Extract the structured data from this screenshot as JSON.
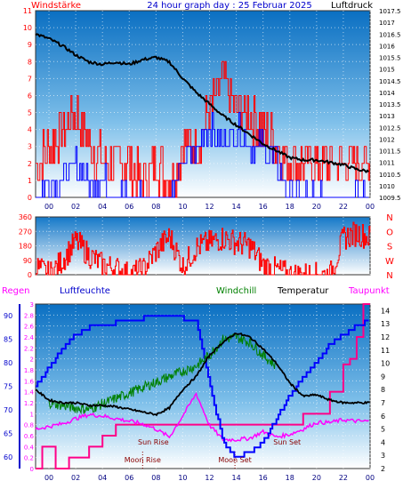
{
  "chart_data": [
    {
      "type": "line",
      "panel": "wind_pressure",
      "title": "24 hour graph day : 25 Februar 2025",
      "left_label": "Windstärke",
      "right_label": "Luftdruck",
      "x_ticks": [
        "00",
        "02",
        "04",
        "06",
        "08",
        "10",
        "12",
        "14",
        "16",
        "18",
        "20",
        "22",
        "00"
      ],
      "y_left_ticks": [
        "0",
        "1",
        "2",
        "3",
        "4",
        "5",
        "6",
        "7",
        "8",
        "9",
        "10",
        "11"
      ],
      "y_left_range": [
        0,
        11
      ],
      "y_right_ticks": [
        "1009.5",
        "1010",
        "1010.5",
        "1011",
        "1011.5",
        "1012",
        "1012.5",
        "1013",
        "1013.5",
        "1014",
        "1014.5",
        "1015",
        "1015.5",
        "1016",
        "1016.5",
        "1017",
        "1017.5"
      ],
      "y_right_range": [
        1009.5,
        1017.5
      ],
      "series": [
        {
          "name": "Luftdruck",
          "color": "#000000",
          "x": [
            -1,
            0,
            1,
            2,
            3,
            4,
            5,
            6,
            7,
            8,
            9,
            10,
            11,
            12,
            13,
            14,
            15,
            16,
            17,
            18,
            19,
            20,
            21,
            22,
            23,
            24
          ],
          "y": [
            1016.5,
            1016.3,
            1016.0,
            1015.6,
            1015.3,
            1015.2,
            1015.3,
            1015.2,
            1015.4,
            1015.5,
            1015.3,
            1014.6,
            1014.0,
            1013.5,
            1013.0,
            1012.6,
            1012.2,
            1011.8,
            1011.5,
            1011.2,
            1011.1,
            1011.1,
            1011.0,
            1010.9,
            1010.7,
            1010.6
          ]
        },
        {
          "name": "wind_gust",
          "color": "#ff0000",
          "x": [
            -1,
            0,
            1,
            2,
            3,
            4,
            5,
            6,
            7,
            8,
            9,
            10,
            11,
            12,
            13,
            14,
            15,
            16,
            17,
            18,
            19,
            20,
            21,
            22,
            23,
            24
          ],
          "y": [
            2,
            3,
            4,
            5,
            3,
            2,
            2,
            2,
            1,
            2,
            1,
            3,
            3,
            5,
            7,
            5,
            5,
            4,
            3,
            2,
            2,
            2,
            2,
            2,
            2,
            2
          ]
        },
        {
          "name": "wind_avg",
          "color": "#0000ff",
          "x": [
            -1,
            0,
            1,
            2,
            3,
            4,
            5,
            6,
            7,
            8,
            9,
            10,
            11,
            12,
            13,
            14,
            15,
            16,
            17,
            18,
            19,
            20,
            21,
            22,
            23,
            24
          ],
          "y": [
            0,
            1,
            1,
            2,
            1,
            1,
            0,
            0,
            0,
            0,
            0,
            2,
            3,
            4,
            3,
            4,
            3,
            3,
            2,
            0,
            0,
            0,
            0,
            0,
            0,
            0
          ]
        }
      ]
    },
    {
      "type": "line",
      "panel": "wind_direction",
      "y_left_ticks": [
        "0",
        "90",
        "180",
        "270",
        "360"
      ],
      "y_left_range": [
        0,
        360
      ],
      "y_right_ticks": [
        "N",
        "W",
        "S",
        "O",
        "N"
      ],
      "series": [
        {
          "name": "direction",
          "color": "#ff0000",
          "x": [
            -1,
            0,
            1,
            2,
            3,
            4,
            5,
            6,
            7,
            8,
            9,
            10,
            11,
            12,
            13,
            14,
            15,
            16,
            17,
            18,
            19,
            20,
            21,
            22,
            23,
            24
          ],
          "y": [
            50,
            0,
            90,
            210,
            120,
            60,
            40,
            0,
            30,
            150,
            240,
            50,
            170,
            200,
            230,
            200,
            180,
            60,
            30,
            0,
            0,
            0,
            0,
            230,
            260,
            230
          ]
        }
      ]
    },
    {
      "type": "line",
      "panel": "humidity_temperature",
      "labels": {
        "regen": "Regen",
        "luftfeuchte": "Luftfeuchte",
        "windchill": "Windchill",
        "temperatur": "Temperatur",
        "taupunkt": "Taupunkt"
      },
      "annotations": [
        "Sun Rise",
        "Sun Set",
        "Moon Rise",
        "Moon Set"
      ],
      "y_rain_ticks": [
        "0",
        "0.2",
        "0.4",
        "0.6",
        "0.8",
        "1",
        "1.2",
        "1.4",
        "1.6",
        "1.8",
        "2",
        "2.2",
        "2.4",
        "2.6",
        "2.8",
        "3"
      ],
      "y_rain_range": [
        0,
        3
      ],
      "y_humidity_ticks": [
        "60",
        "65",
        "70",
        "75",
        "80",
        "85",
        "90"
      ],
      "y_humidity_range": [
        57.5,
        92.5
      ],
      "y_temp_ticks": [
        "2",
        "3",
        "4",
        "5",
        "6",
        "7",
        "8",
        "9",
        "10",
        "11",
        "12",
        "13",
        "14"
      ],
      "y_temp_range": [
        2,
        14.5
      ],
      "x_ticks": [
        "00",
        "02",
        "04",
        "06",
        "08",
        "10",
        "12",
        "14",
        "16",
        "18",
        "20",
        "22",
        "00"
      ],
      "series": [
        {
          "name": "Luftfeuchte",
          "color": "#0000ff",
          "x": [
            -1,
            0,
            1,
            2,
            3,
            4,
            5,
            6,
            7,
            8,
            9,
            10,
            11,
            12,
            13,
            14,
            15,
            16,
            17,
            18,
            19,
            20,
            21,
            22,
            23,
            24
          ],
          "y": [
            75,
            79,
            83,
            86,
            87.5,
            88,
            88.5,
            89,
            89.5,
            89.5,
            89.5,
            89.5,
            89,
            76,
            63,
            60,
            61,
            63,
            68,
            73,
            77,
            80,
            84,
            86,
            88,
            89
          ]
        },
        {
          "name": "Temperatur",
          "color": "#000000",
          "x": [
            -1,
            0,
            1,
            2,
            3,
            4,
            5,
            6,
            7,
            8,
            9,
            10,
            11,
            12,
            13,
            14,
            15,
            16,
            17,
            18,
            19,
            20,
            21,
            22,
            23,
            24
          ],
          "y": [
            8,
            7.2,
            7,
            7,
            6.8,
            6.8,
            6.7,
            6.5,
            6.3,
            6.1,
            6.6,
            8,
            9,
            10.6,
            11.6,
            12.3,
            12,
            11.1,
            10,
            8.5,
            7.5,
            7.6,
            7.2,
            7,
            7,
            7
          ]
        },
        {
          "name": "Windchill",
          "color": "#008000",
          "x": [
            0,
            1,
            2,
            3,
            11,
            12,
            13,
            14,
            15,
            16,
            17
          ],
          "y": [
            7.0,
            6.8,
            6.6,
            6.5,
            9.8,
            10.6,
            11.8,
            12.0,
            11.6,
            10.6,
            9.8
          ]
        },
        {
          "name": "Taupunkt",
          "color": "#ff00ff",
          "x": [
            -1,
            0,
            1,
            2,
            3,
            4,
            5,
            6,
            7,
            8,
            9,
            10,
            11,
            12,
            13,
            14,
            15,
            16,
            17,
            18,
            19,
            20,
            21,
            22,
            23,
            24
          ],
          "y": [
            5,
            5.2,
            5.4,
            5.8,
            6.1,
            6.0,
            5.8,
            5.6,
            5.4,
            5.0,
            4.4,
            6,
            7.7,
            5.3,
            4.2,
            4.2,
            4.3,
            4.8,
            4.4,
            4.6,
            5.0,
            5.5,
            5.5,
            5.7,
            5.6,
            5.6
          ]
        },
        {
          "name": "Regen",
          "color": "#ff0088",
          "x": [
            -1,
            -0.5,
            0,
            0.5,
            1,
            1.5,
            2,
            2.5,
            3,
            4,
            5,
            7,
            9,
            11,
            13,
            15,
            17,
            19,
            20,
            21,
            22,
            22.5,
            23,
            23.5,
            24
          ],
          "y": [
            0,
            0.4,
            0.4,
            0,
            0,
            0.2,
            0.2,
            0.2,
            0.4,
            0.6,
            0.8,
            0.8,
            0.8,
            0.8,
            0.8,
            0.8,
            0.8,
            1.0,
            1.0,
            1.4,
            1.9,
            2.0,
            2.4,
            3.0,
            3.0
          ]
        }
      ]
    }
  ]
}
